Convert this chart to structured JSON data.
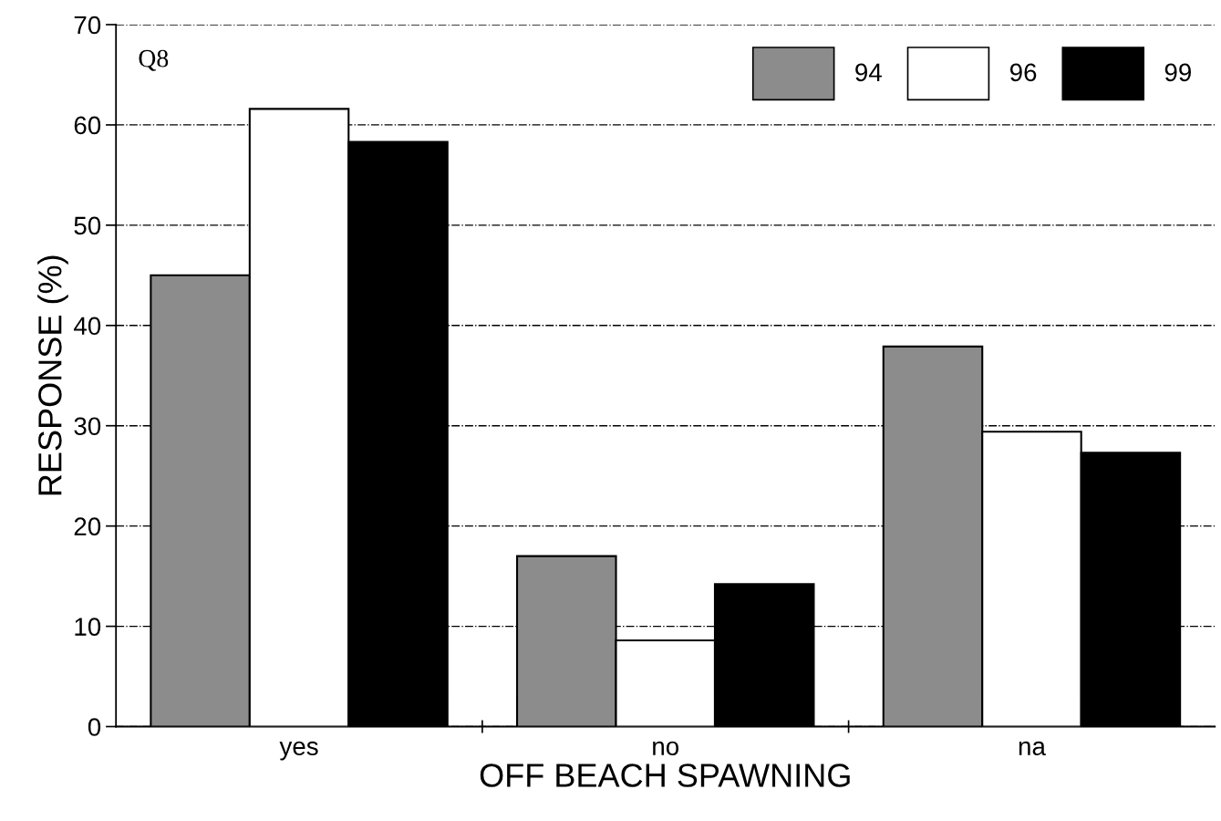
{
  "chart_data": {
    "type": "bar",
    "xlabel": "OFF BEACH SPAWNING",
    "ylabel": "RESPONSE (%)",
    "categories": [
      "yes",
      "no",
      "na"
    ],
    "series": [
      {
        "name": "94",
        "color": "#8c8c8c",
        "values": [
          45.0,
          17.0,
          37.9
        ]
      },
      {
        "name": "96",
        "color": "#ffffff",
        "values": [
          61.6,
          8.6,
          29.4
        ]
      },
      {
        "name": "99",
        "color": "#000000",
        "values": [
          58.3,
          14.2,
          27.3
        ]
      }
    ],
    "ylim": [
      0,
      70
    ],
    "yticks": [
      0,
      10,
      20,
      30,
      40,
      50,
      60,
      70
    ],
    "grid": "y",
    "legend": "top right",
    "annotations": [
      "Q8"
    ]
  }
}
